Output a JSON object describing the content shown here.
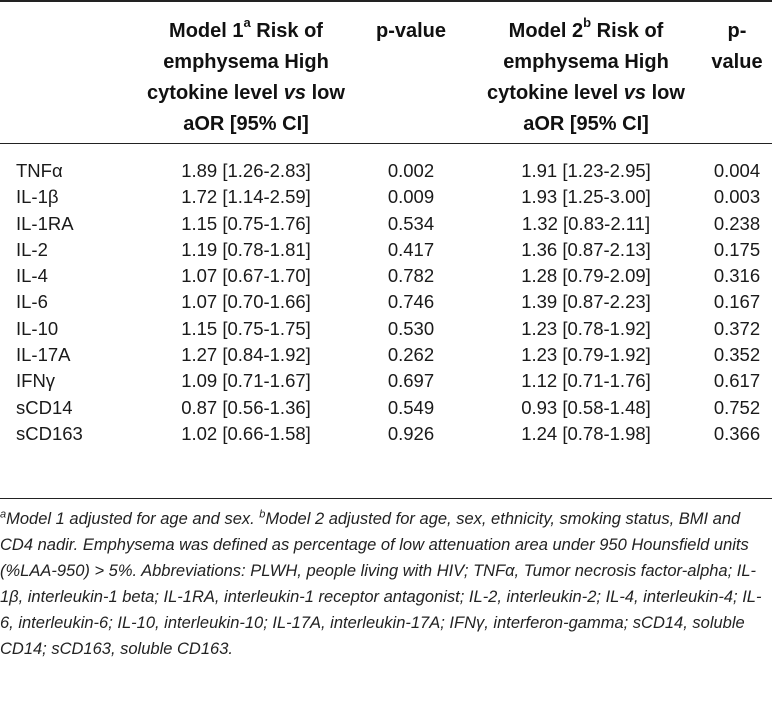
{
  "header": {
    "model1": {
      "title_pre": "Model 1",
      "sup": "a",
      "title_post": " Risk of emphysema High cytokine level ",
      "vs": "vs",
      "title_end": " low aOR [95% CI]"
    },
    "pvalue1": "p-value",
    "model2": {
      "title_pre": "Model 2",
      "sup": "b",
      "title_post": " Risk of emphysema High cytokine level ",
      "vs": "vs",
      "title_end": " low aOR [95% CI]"
    },
    "pvalue2": "p-value"
  },
  "rows": [
    {
      "name": "TNFα",
      "m1": "1.89 [1.26-2.83]",
      "p1": "0.002",
      "m2": "1.91 [1.23-2.95]",
      "p2": "0.004"
    },
    {
      "name": "IL-1β",
      "m1": "1.72 [1.14-2.59]",
      "p1": "0.009",
      "m2": "1.93 [1.25-3.00]",
      "p2": "0.003"
    },
    {
      "name": "IL-1RA",
      "m1": "1.15 [0.75-1.76]",
      "p1": "0.534",
      "m2": "1.32 [0.83-2.11]",
      "p2": "0.238"
    },
    {
      "name": "IL-2",
      "m1": "1.19 [0.78-1.81]",
      "p1": "0.417",
      "m2": "1.36 [0.87-2.13]",
      "p2": "0.175"
    },
    {
      "name": "IL-4",
      "m1": "1.07 [0.67-1.70]",
      "p1": "0.782",
      "m2": "1.28 [0.79-2.09]",
      "p2": "0.316"
    },
    {
      "name": "IL-6",
      "m1": "1.07 [0.70-1.66]",
      "p1": "0.746",
      "m2": "1.39 [0.87-2.23]",
      "p2": "0.167"
    },
    {
      "name": "IL-10",
      "m1": "1.15 [0.75-1.75]",
      "p1": "0.530",
      "m2": "1.23 [0.78-1.92]",
      "p2": "0.372"
    },
    {
      "name": "IL-17A",
      "m1": "1.27 [0.84-1.92]",
      "p1": "0.262",
      "m2": "1.23 [0.79-1.92]",
      "p2": "0.352"
    },
    {
      "name": "IFNγ",
      "m1": "1.09 [0.71-1.67]",
      "p1": "0.697",
      "m2": "1.12 [0.71-1.76]",
      "p2": "0.617"
    },
    {
      "name": "sCD14",
      "m1": "0.87 [0.56-1.36]",
      "p1": "0.549",
      "m2": "0.93 [0.58-1.48]",
      "p2": "0.752"
    },
    {
      "name": "sCD163",
      "m1": "1.02 [0.66-1.58]",
      "p1": "0.926",
      "m2": "1.24 [0.78-1.98]",
      "p2": "0.366"
    }
  ],
  "footnote": {
    "sup_a": "a",
    "text_a": "Model 1 adjusted for age and sex. ",
    "sup_b": "b",
    "text_b": "Model 2 adjusted for age, sex, ethnicity, smoking status, BMI and CD4 nadir. Emphysema was defined as percentage of low attenuation area under 950 Hounsfield units (%LAA-950) > 5%. Abbreviations: PLWH, people living with HIV; TNFα, Tumor necrosis factor-alpha; IL-1β, interleukin-1 beta; IL-1RA, interleukin-1 receptor antagonist; IL-2, interleukin-2; IL-4, interleukin-4; IL-6, interleukin-6; IL-10, interleukin-10; IL-17A, interleukin-17A; IFNγ, interferon-gamma; sCD14, soluble CD14; sCD163, soluble CD163."
  }
}
